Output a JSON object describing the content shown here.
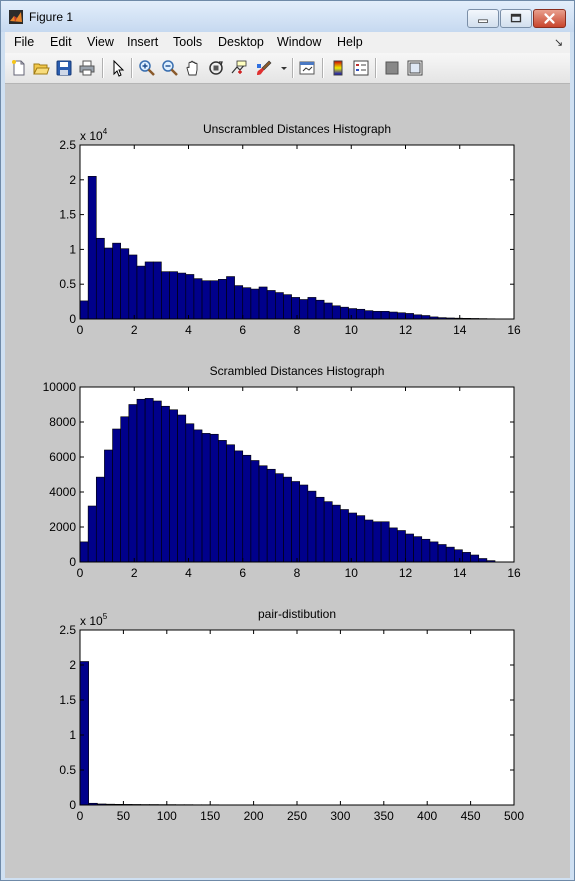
{
  "window": {
    "title": "Figure 1"
  },
  "menu": {
    "items": [
      "File",
      "Edit",
      "View",
      "Insert",
      "Tools",
      "Desktop",
      "Window",
      "Help"
    ],
    "dock_arrow": "↘"
  },
  "toolbar": {
    "buttons": [
      "new-figure",
      "open-file",
      "save",
      "print",
      "edit-plot",
      "zoom-in",
      "zoom-out",
      "pan",
      "rotate-3d",
      "data-cursor",
      "brush",
      "brush-dropdown",
      "link-plot",
      "colorbar",
      "legend",
      "hide-plot-tools",
      "show-plot-tools"
    ]
  },
  "colors": {
    "bar_fill": "#00008b",
    "bar_edge": "#000000",
    "axes_bg": "#ffffff",
    "figure_bg": "#c8c8c8"
  },
  "chart_data": [
    {
      "type": "bar",
      "title": "Unscrambled Distances Histograph",
      "xlim": [
        0,
        16
      ],
      "ylim": [
        0,
        25000
      ],
      "xticks": [
        "0",
        "2",
        "4",
        "6",
        "8",
        "10",
        "12",
        "14",
        "16"
      ],
      "yticks": [
        "0",
        "0.5",
        "1",
        "1.5",
        "2",
        "2.5"
      ],
      "yexponent": "x 10",
      "yexponent_power": "4",
      "bin_width": 0.3,
      "x": [
        0.15,
        0.45,
        0.75,
        1.05,
        1.35,
        1.65,
        1.95,
        2.25,
        2.55,
        2.85,
        3.15,
        3.45,
        3.75,
        4.05,
        4.35,
        4.65,
        4.95,
        5.25,
        5.55,
        5.85,
        6.15,
        6.45,
        6.75,
        7.05,
        7.35,
        7.65,
        7.95,
        8.25,
        8.55,
        8.85,
        9.15,
        9.45,
        9.75,
        10.05,
        10.35,
        10.65,
        10.95,
        11.25,
        11.55,
        11.85,
        12.15,
        12.45,
        12.75,
        13.05,
        13.35,
        13.65,
        13.95,
        14.25,
        14.55,
        14.85,
        15.15
      ],
      "values": [
        2600,
        20500,
        11600,
        10200,
        10900,
        10100,
        9200,
        7600,
        8200,
        8200,
        6800,
        6800,
        6600,
        6400,
        5800,
        5500,
        5500,
        5700,
        6100,
        4800,
        4500,
        4300,
        4600,
        4100,
        3800,
        3500,
        3100,
        2800,
        3100,
        2700,
        2300,
        1900,
        1700,
        1500,
        1400,
        1200,
        1100,
        1100,
        1000,
        900,
        800,
        600,
        500,
        300,
        200,
        150,
        120,
        100,
        80,
        60,
        40
      ]
    },
    {
      "type": "bar",
      "title": "Scrambled Distances Histograph",
      "xlim": [
        0,
        16
      ],
      "ylim": [
        0,
        10000
      ],
      "xticks": [
        "0",
        "2",
        "4",
        "6",
        "8",
        "10",
        "12",
        "14",
        "16"
      ],
      "yticks": [
        "0",
        "2000",
        "4000",
        "6000",
        "8000",
        "10000"
      ],
      "bin_width": 0.3,
      "x": [
        0.15,
        0.45,
        0.75,
        1.05,
        1.35,
        1.65,
        1.95,
        2.25,
        2.55,
        2.85,
        3.15,
        3.45,
        3.75,
        4.05,
        4.35,
        4.65,
        4.95,
        5.25,
        5.55,
        5.85,
        6.15,
        6.45,
        6.75,
        7.05,
        7.35,
        7.65,
        7.95,
        8.25,
        8.55,
        8.85,
        9.15,
        9.45,
        9.75,
        10.05,
        10.35,
        10.65,
        10.95,
        11.25,
        11.55,
        11.85,
        12.15,
        12.45,
        12.75,
        13.05,
        13.35,
        13.65,
        13.95,
        14.25,
        14.55,
        14.85,
        15.15
      ],
      "values": [
        1150,
        3200,
        4850,
        6400,
        7600,
        8300,
        9000,
        9300,
        9350,
        9200,
        8900,
        8700,
        8400,
        7900,
        7550,
        7350,
        7300,
        6950,
        6700,
        6350,
        6100,
        5800,
        5500,
        5300,
        5050,
        4850,
        4600,
        4400,
        4050,
        3700,
        3450,
        3250,
        3000,
        2800,
        2650,
        2400,
        2300,
        2300,
        1950,
        1800,
        1600,
        1450,
        1300,
        1150,
        1000,
        850,
        700,
        550,
        400,
        200,
        80
      ]
    },
    {
      "type": "bar",
      "title": "pair-distibution",
      "xlim": [
        0,
        500
      ],
      "ylim": [
        0,
        250000
      ],
      "xticks": [
        "0",
        "50",
        "100",
        "150",
        "200",
        "250",
        "300",
        "350",
        "400",
        "450",
        "500"
      ],
      "yticks": [
        "0",
        "0.5",
        "1",
        "1.5",
        "2",
        "2.5"
      ],
      "yexponent": "x 10",
      "yexponent_power": "5",
      "bin_width": 10,
      "x": [
        5,
        15,
        25,
        35,
        45,
        55,
        65,
        75,
        85,
        95,
        105,
        115,
        125,
        135,
        145,
        155,
        165,
        175,
        185,
        195,
        205,
        215,
        225,
        235,
        245,
        255,
        265,
        275,
        285,
        295,
        305,
        315,
        325,
        335,
        345,
        355,
        365,
        375,
        385,
        395,
        405,
        415,
        425,
        435,
        445,
        455,
        465,
        475,
        485,
        495
      ],
      "values": [
        205000,
        2500,
        1500,
        1200,
        1000,
        900,
        800,
        700,
        700,
        600,
        600,
        500,
        500,
        400,
        400,
        400,
        300,
        300,
        300,
        300,
        300,
        300,
        200,
        200,
        200,
        200,
        200,
        200,
        200,
        200,
        200,
        200,
        200,
        200,
        200,
        200,
        200,
        200,
        200,
        200,
        200,
        200,
        200,
        200,
        200,
        200,
        200,
        200,
        200,
        200
      ]
    }
  ]
}
